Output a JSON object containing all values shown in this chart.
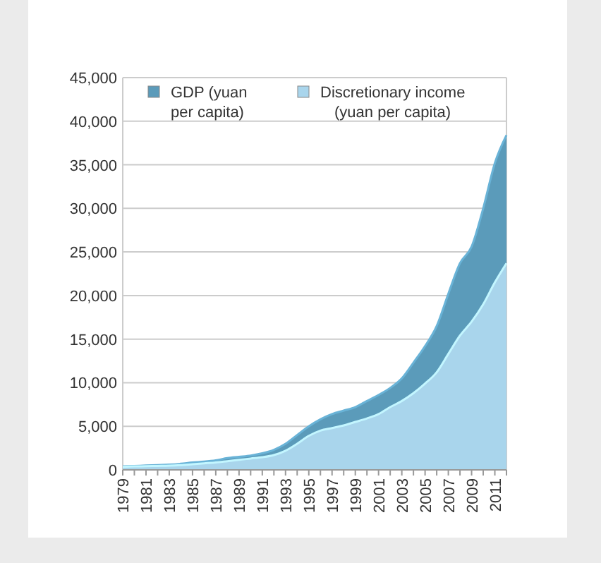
{
  "chart_data": {
    "type": "area",
    "categories": [
      "1979",
      null,
      "1981",
      null,
      "1983",
      null,
      "1985",
      null,
      "1987",
      null,
      "1989",
      null,
      "1991",
      null,
      "1993",
      null,
      "1995",
      null,
      "1997",
      null,
      "1999",
      null,
      "2001",
      null,
      "2003",
      null,
      "2005",
      null,
      "2007",
      null,
      "2009",
      null,
      "2011",
      null
    ],
    "series": [
      {
        "name": "GDP (yuan per capita)",
        "color": "#5b9bba",
        "values": [
          400,
          450,
          500,
          550,
          600,
          700,
          850,
          950,
          1100,
          1350,
          1500,
          1650,
          1900,
          2300,
          3000,
          4000,
          5000,
          5800,
          6400,
          6800,
          7200,
          7900,
          8600,
          9400,
          10500,
          12300,
          14200,
          16500,
          20200,
          23700,
          25600,
          30000,
          35200,
          38400
        ]
      },
      {
        "name": "Discretionary income (yuan per capita)",
        "color": "#a9d5ec",
        "values": [
          350,
          400,
          420,
          450,
          480,
          550,
          650,
          750,
          850,
          1000,
          1150,
          1300,
          1450,
          1700,
          2200,
          3000,
          3900,
          4500,
          4800,
          5100,
          5500,
          5900,
          6400,
          7200,
          7900,
          8800,
          9900,
          11200,
          13300,
          15400,
          17000,
          19000,
          21500,
          23700
        ]
      }
    ],
    "ylim": [
      0,
      45000
    ],
    "yticks": [
      {
        "value": 0,
        "label": "0"
      },
      {
        "value": 5000,
        "label": "5,000"
      },
      {
        "value": 10000,
        "label": "10,000"
      },
      {
        "value": 15000,
        "label": "15,000"
      },
      {
        "value": 20000,
        "label": "20,000"
      },
      {
        "value": 25000,
        "label": "25,000"
      },
      {
        "value": 30000,
        "label": "30,000"
      },
      {
        "value": 35000,
        "label": "35,000"
      },
      {
        "value": 40000,
        "label": "40,000"
      },
      {
        "value": 45000,
        "label": "45,000"
      }
    ],
    "grid": "y",
    "legend": "top left"
  }
}
